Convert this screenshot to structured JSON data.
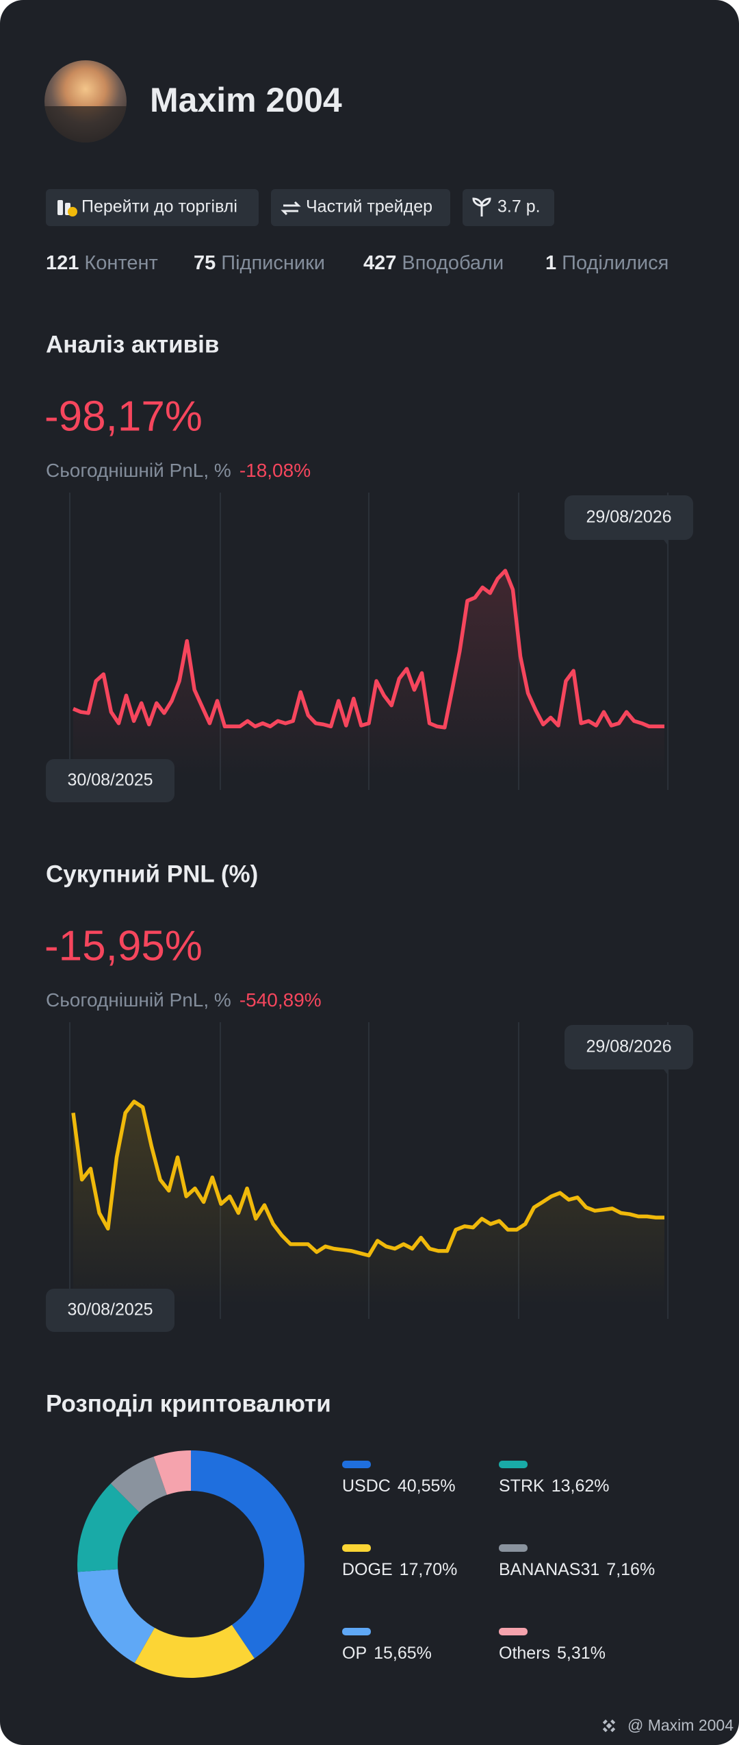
{
  "profile": {
    "name": "Maxim 2004",
    "buttons": [
      "Перейти до торгівлі",
      "Частий трейдер",
      "3.7 р."
    ],
    "stats": [
      {
        "value": 121,
        "label": "Контент"
      },
      {
        "value": 75,
        "label": "Підписники"
      },
      {
        "value": 427,
        "label": "Вподобали"
      },
      {
        "value": 1,
        "label": "Поділилися"
      }
    ]
  },
  "chart_data": [
    {
      "type": "line",
      "title": "Аналіз активів",
      "summary": "-98,17%",
      "today_label": "Сьогоднішній PnL, %",
      "today_value": "-18,08%",
      "x_labels": [
        "30/08/2025",
        "29/08/2026"
      ],
      "color": "#f6465d",
      "ylim": [
        0,
        100
      ],
      "values": [
        28.6,
        27.5,
        27.1,
        38.4,
        40.8,
        27.5,
        23.5,
        33.3,
        24.3,
        30.6,
        23.1,
        30.6,
        27.1,
        31.4,
        38.4,
        52.5,
        35.3,
        29.4,
        23.5,
        31.4,
        22.4,
        22.4,
        22.4,
        24.3,
        22.4,
        23.5,
        22.4,
        24.3,
        23.5,
        24.3,
        34.5,
        26.3,
        23.5,
        23.1,
        22.4,
        31.4,
        22.7,
        32.2,
        22.7,
        23.5,
        38.4,
        33.3,
        29.8,
        39.2,
        42.7,
        35.3,
        41.2,
        23.5,
        22.4,
        22,
        35.3,
        49,
        66.7,
        67.8,
        71.4,
        69.4,
        74.5,
        77.3,
        70.6,
        47.1,
        34.1,
        28.2,
        23.1,
        25.5,
        22.7,
        38.4,
        42,
        23.5,
        24.3,
        22.7,
        27.5,
        22.7,
        23.5,
        27.5,
        24.3,
        23.5,
        22.4,
        22.4,
        22.4
      ]
    },
    {
      "type": "line",
      "title": "Сукупний PNL (%)",
      "summary": "-15,95%",
      "today_label": "Сьогоднішній PnL, %",
      "today_value": "-540,89%",
      "x_labels": [
        "30/08/2025",
        "29/08/2026"
      ],
      "color": "#f0b90b",
      "ylim": [
        0,
        100
      ],
      "values": [
        72.8,
        49.2,
        53.1,
        37.4,
        31.9,
        57.1,
        72.8,
        76.8,
        74.8,
        61,
        49.2,
        45.3,
        57.1,
        43.3,
        46.1,
        41.3,
        50,
        40.6,
        43.3,
        37.4,
        46.1,
        35.4,
        40.2,
        33.5,
        29.5,
        26.4,
        26.4,
        26.4,
        23.6,
        25.6,
        24.8,
        24.4,
        24,
        23.2,
        22.4,
        27.6,
        25.6,
        24.8,
        26.4,
        24.8,
        28.7,
        24.8,
        24,
        24,
        31.5,
        32.7,
        32.3,
        35.4,
        33.5,
        34.6,
        31.5,
        31.5,
        33.5,
        39.4,
        41.3,
        43.3,
        44.5,
        42.1,
        42.9,
        39.4,
        38.2,
        38.6,
        39,
        37.4,
        37,
        36.2,
        36.2,
        35.8,
        35.8
      ]
    },
    {
      "type": "donut",
      "title": "Розподіл криптовалюти",
      "categories": [
        "USDC",
        "DOGE",
        "OP",
        "STRK",
        "BANANAS31",
        "Others"
      ],
      "values": [
        40.55,
        17.7,
        15.65,
        13.62,
        7.16,
        5.31
      ],
      "value_labels": [
        "40,55%",
        "17,70%",
        "15,65%",
        "13,62%",
        "7,16%",
        "5,31%"
      ],
      "colors": [
        "#1f6fde",
        "#fcd535",
        "#5fa8f6",
        "#19aaa7",
        "#8a939e",
        "#f5a3ad"
      ]
    }
  ],
  "footer": "@ Maxim 2004"
}
